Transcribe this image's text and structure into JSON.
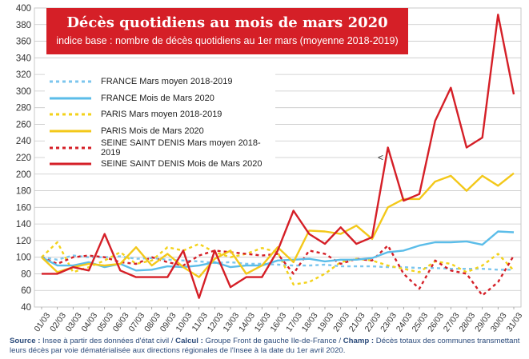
{
  "chart_data": {
    "type": "line",
    "title": "Décès quotidiens au mois de mars 2020",
    "subtitle": "indice base : nombre de décès quotidiens au 1er mars (moyenne 2018-2019)",
    "categories": [
      "01/03",
      "02/03",
      "03/03",
      "04/03",
      "05/03",
      "06/03",
      "07/03",
      "08/03",
      "09/03",
      "10/03",
      "11/03",
      "12/03",
      "13/03",
      "14/03",
      "15/03",
      "16/03",
      "17/03",
      "18/03",
      "19/03",
      "20/03",
      "21/03",
      "22/03",
      "23/03",
      "24/03",
      "25/03",
      "26/03",
      "27/03",
      "28/03",
      "29/03",
      "30/03",
      "31/03"
    ],
    "ylim": [
      40,
      400
    ],
    "yticks": [
      40,
      60,
      80,
      100,
      120,
      140,
      160,
      180,
      200,
      220,
      240,
      260,
      280,
      300,
      320,
      340,
      360,
      380,
      400
    ],
    "grid": true,
    "legend_position": "top-left",
    "series": [
      {
        "name": "FRANCE Mars moyen 2018-2019",
        "color": "#7cc6ee",
        "dash": true,
        "values": [
          100,
          97,
          102,
          100,
          100,
          101,
          98,
          99,
          97,
          96,
          95,
          93,
          94,
          92,
          92,
          91,
          90,
          90,
          91,
          89,
          89,
          89,
          88,
          88,
          87,
          87,
          86,
          86,
          86,
          85,
          85
        ]
      },
      {
        "name": "FRANCE Mois de Mars 2020",
        "color": "#5bbde9",
        "dash": false,
        "values": [
          100,
          90,
          90,
          94,
          88,
          92,
          84,
          85,
          89,
          88,
          90,
          94,
          88,
          90,
          90,
          96,
          97,
          98,
          95,
          97,
          97,
          99,
          106,
          108,
          114,
          118,
          118,
          119,
          115,
          131,
          130
        ]
      },
      {
        "name": "PARIS Mars moyen 2018-2019",
        "color": "#f3d21a",
        "dash": true,
        "values": [
          100,
          118,
          82,
          88,
          96,
          106,
          92,
          96,
          112,
          108,
          116,
          106,
          100,
          104,
          111,
          106,
          67,
          70,
          80,
          94,
          98,
          96,
          90,
          86,
          82,
          95,
          92,
          82,
          90,
          104,
          84
        ]
      },
      {
        "name": "PARIS Mois de Mars 2020",
        "color": "#f3c81a",
        "dash": false,
        "values": [
          100,
          82,
          88,
          92,
          90,
          92,
          112,
          90,
          104,
          88,
          76,
          98,
          108,
          80,
          90,
          112,
          94,
          132,
          131,
          128,
          138,
          122,
          160,
          170,
          170,
          191,
          198,
          180,
          198,
          186,
          201
        ]
      },
      {
        "name": "SEINE SAINT DENIS Mars moyen 2018-2019",
        "color": "#d51f27",
        "dash": true,
        "values": [
          100,
          92,
          100,
          102,
          100,
          94,
          92,
          100,
          94,
          90,
          102,
          108,
          106,
          104,
          102,
          104,
          80,
          108,
          104,
          92,
          98,
          96,
          114,
          80,
          62,
          96,
          84,
          80,
          54,
          70,
          102
        ]
      },
      {
        "name": "SEINE SAINT DENIS Mois de Mars 2020",
        "color": "#d51f27",
        "dash": false,
        "values": [
          80,
          80,
          88,
          84,
          128,
          84,
          76,
          76,
          76,
          108,
          51,
          108,
          64,
          76,
          76,
          108,
          156,
          128,
          116,
          136,
          116,
          124,
          232,
          168,
          176,
          264,
          304,
          232,
          244,
          392,
          296
        ]
      }
    ],
    "annotations": [
      "<"
    ]
  },
  "footer": {
    "source_label": "Source :",
    "source_text": " Insee à partir des données d'état civil / ",
    "calcul_label": "Calcul :",
    "calcul_text": " Groupe Front de gauche Ile-de-France / ",
    "champ_label": "Champ :",
    "champ_text": " Décès totaux des communes transmettant leurs décès par voie dématérialisée aux directions régionales de l'Insee à la date du 1er avril 2020."
  }
}
